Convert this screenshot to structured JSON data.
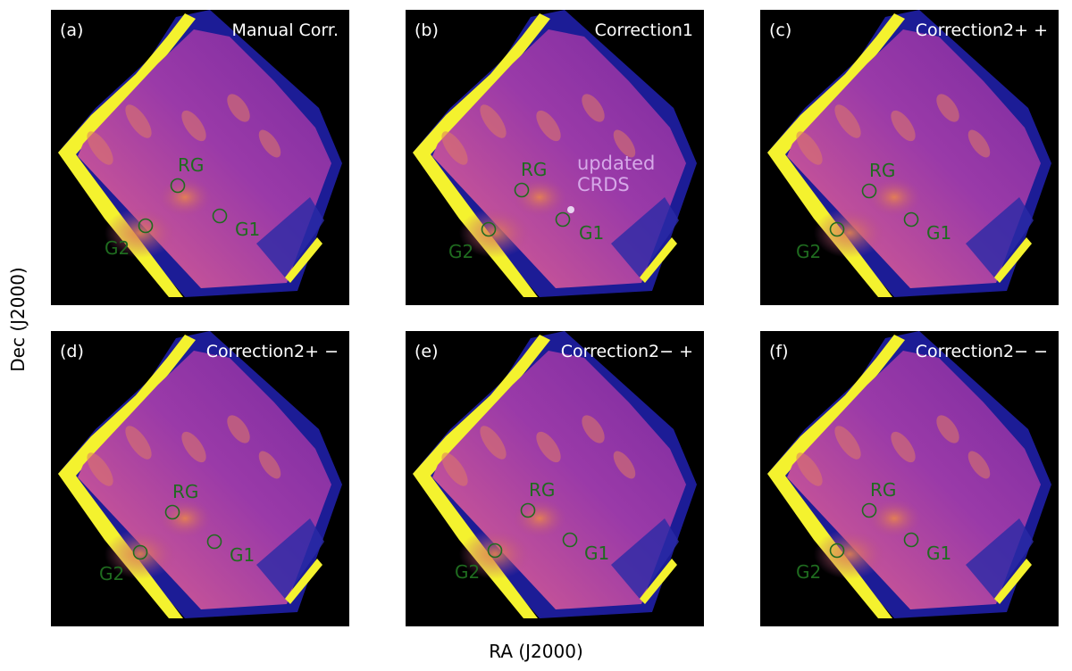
{
  "figure": {
    "xlabel": "RA (J2000)",
    "ylabel": "Dec (J2000)"
  },
  "colors": {
    "background": "#000000",
    "marker": "#1f6b1f",
    "note": "#d6a8e8"
  },
  "panels": [
    {
      "tag": "(a)",
      "title": "Manual Corr.",
      "labels": {
        "rg": "RG",
        "g1": "G1",
        "g2": "G2"
      }
    },
    {
      "tag": "(b)",
      "title": "Correction1",
      "labels": {
        "rg": "RG",
        "g1": "G1",
        "g2": "G2"
      },
      "note": [
        "updated",
        "CRDS"
      ]
    },
    {
      "tag": "(c)",
      "title": "Correction2+ +",
      "labels": {
        "rg": "RG",
        "g1": "G1",
        "g2": "G2"
      }
    },
    {
      "tag": "(d)",
      "title": "Correction2+ −",
      "labels": {
        "rg": "RG",
        "g1": "G1",
        "g2": "G2"
      }
    },
    {
      "tag": "(e)",
      "title": "Correction2− +",
      "labels": {
        "rg": "RG",
        "g1": "G1",
        "g2": "G2"
      }
    },
    {
      "tag": "(f)",
      "title": "Correction2− −",
      "labels": {
        "rg": "RG",
        "g1": "G1",
        "g2": "G2"
      }
    }
  ]
}
